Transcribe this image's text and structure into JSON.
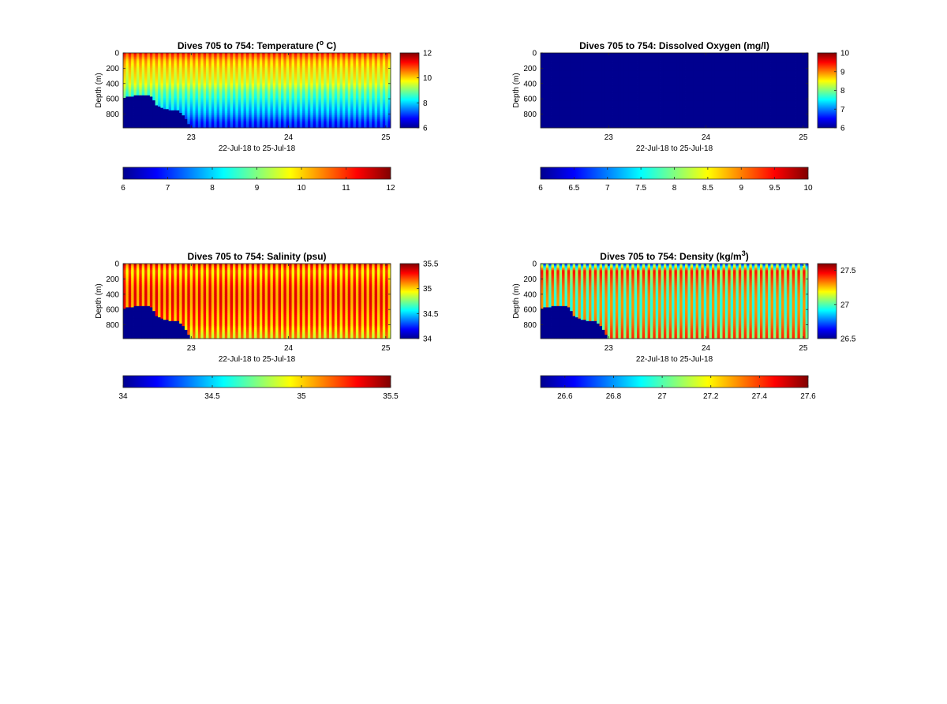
{
  "figure": {
    "colormap": "jet",
    "cmap_stops": [
      "#00008f",
      "#0000ff",
      "#0080ff",
      "#00ffff",
      "#80ff80",
      "#ffff00",
      "#ff8000",
      "#ff0000",
      "#800000"
    ],
    "mask_color": "#00008f"
  },
  "chart_data": [
    {
      "type": "heatmap",
      "id": "temperature",
      "variable": "temperature",
      "title_main": "Dives 705 to 754: Temperature (",
      "title_sup": "o",
      "title_tail": " C)",
      "ylabel": "Depth (m)",
      "xlabel": "22-Jul-18 to 25-Jul-18",
      "xlim": [
        22.3,
        25.05
      ],
      "ylim": [
        0,
        980
      ],
      "x_ticks": [
        "23",
        "24",
        "25"
      ],
      "y_ticks": [
        "0",
        "200",
        "400",
        "600",
        "800"
      ],
      "dives": 50,
      "clim": [
        6,
        12
      ],
      "colorbar_ticks": [
        "6",
        "8",
        "10",
        "12"
      ],
      "horiz_colorbar_ticks": [
        "6",
        "7",
        "8",
        "9",
        "10",
        "11",
        "12"
      ],
      "profile_depth": [
        0,
        50,
        100,
        200,
        300,
        400,
        500,
        600,
        700,
        800,
        900,
        980
      ],
      "profile_values": [
        11.3,
        10.9,
        10.5,
        10.2,
        10.0,
        9.8,
        9.2,
        8.8,
        8.4,
        8.0,
        7.4,
        7.1
      ],
      "alt_offset": -0.6,
      "bottom_mask": {
        "x": [
          22.3,
          22.42,
          22.58,
          22.65,
          22.71,
          22.79,
          22.87,
          22.94,
          23.0
        ],
        "depth": [
          585,
          560,
          555,
          690,
          730,
          750,
          760,
          850,
          980
        ]
      }
    },
    {
      "type": "heatmap",
      "id": "oxygen",
      "variable": "dissolved oxygen",
      "title_main": "Dives 705 to 754: Dissolved Oxygen (mg/l)",
      "title_sup": "",
      "title_tail": "",
      "ylabel": "Depth (m)",
      "xlabel": "22-Jul-18 to 25-Jul-18",
      "xlim": [
        22.3,
        25.05
      ],
      "ylim": [
        0,
        980
      ],
      "x_ticks": [
        "23",
        "24",
        "25"
      ],
      "y_ticks": [
        "0",
        "200",
        "400",
        "600",
        "800"
      ],
      "dives": 50,
      "clim": [
        6,
        10
      ],
      "colorbar_ticks": [
        "6",
        "7",
        "8",
        "9",
        "10"
      ],
      "horiz_colorbar_ticks": [
        "6",
        "6.5",
        "7",
        "7.5",
        "8",
        "8.5",
        "9",
        "9.5",
        "10"
      ],
      "profile_depth": [
        0,
        980
      ],
      "profile_values": [
        5.0,
        5.0
      ],
      "alt_offset": 0,
      "bottom_mask": null
    },
    {
      "type": "heatmap",
      "id": "salinity",
      "variable": "salinity",
      "title_main": "Dives 705 to 754: Salinity (psu)",
      "title_sup": "",
      "title_tail": "",
      "ylabel": "Depth (m)",
      "xlabel": "22-Jul-18 to 25-Jul-18",
      "xlim": [
        22.3,
        25.05
      ],
      "ylim": [
        0,
        980
      ],
      "x_ticks": [
        "23",
        "24",
        "25"
      ],
      "y_ticks": [
        "0",
        "200",
        "400",
        "600",
        "800"
      ],
      "dives": 50,
      "clim": [
        34,
        35.5
      ],
      "colorbar_ticks": [
        "34",
        "34.5",
        "35",
        "35.5"
      ],
      "horiz_colorbar_ticks": [
        "34",
        "34.5",
        "35",
        "35.5"
      ],
      "profile_depth": [
        0,
        50,
        100,
        200,
        300,
        400,
        500,
        600,
        700,
        800,
        900,
        980
      ],
      "profile_values": [
        35.42,
        35.3,
        35.22,
        35.28,
        35.33,
        35.35,
        35.35,
        35.33,
        35.3,
        35.28,
        35.2,
        35.15
      ],
      "alt_offset": -0.3,
      "bottom_mask": {
        "x": [
          22.3,
          22.42,
          22.58,
          22.65,
          22.71,
          22.79,
          22.87,
          22.94,
          23.0
        ],
        "depth": [
          585,
          560,
          555,
          690,
          730,
          750,
          760,
          850,
          980
        ]
      }
    },
    {
      "type": "heatmap",
      "id": "density",
      "variable": "density",
      "title_main": "Dives 705 to 754: Density (kg/m",
      "title_sup": "3",
      "title_tail": ")",
      "ylabel": "Depth (m)",
      "xlabel": "22-Jul-18 to 25-Jul-18",
      "xlim": [
        22.3,
        25.05
      ],
      "ylim": [
        0,
        980
      ],
      "x_ticks": [
        "23",
        "24",
        "25"
      ],
      "y_ticks": [
        "0",
        "200",
        "400",
        "600",
        "800"
      ],
      "dives": 50,
      "clim": [
        26.5,
        27.6
      ],
      "colorbar_ticks": [
        "26.5",
        "27",
        "27.5"
      ],
      "horiz_colorbar_ticks": [
        "26.6",
        "26.8",
        "27",
        "27.2",
        "27.4",
        "27.6"
      ],
      "profile_depth": [
        0,
        50,
        100,
        200,
        300,
        400,
        500,
        600,
        700,
        800,
        900,
        980
      ],
      "profile_values": [
        27.0,
        27.25,
        27.45,
        27.4,
        27.35,
        27.32,
        27.3,
        27.3,
        27.32,
        27.35,
        27.4,
        27.42
      ],
      "alt_offset": -0.35,
      "bottom_mask": {
        "x": [
          22.3,
          22.42,
          22.58,
          22.65,
          22.71,
          22.79,
          22.87,
          22.94,
          23.0
        ],
        "depth": [
          585,
          560,
          555,
          690,
          730,
          750,
          760,
          850,
          980
        ]
      }
    }
  ]
}
